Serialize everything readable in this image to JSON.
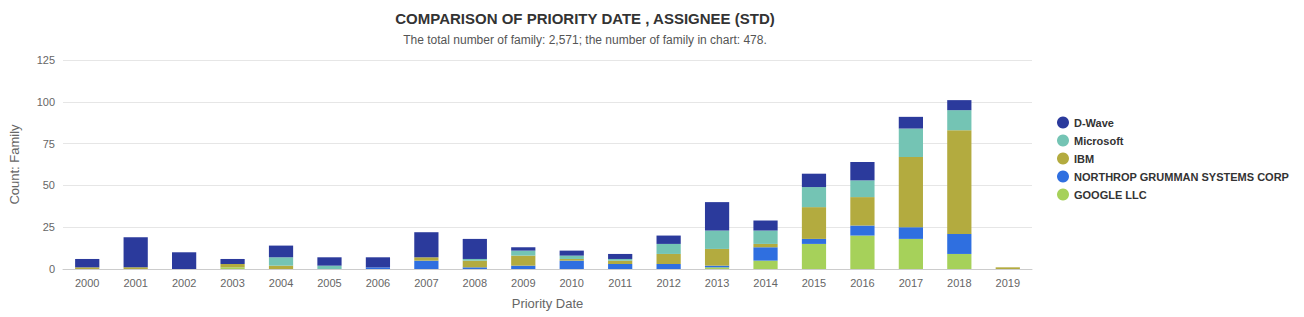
{
  "chart_data": {
    "type": "bar",
    "title": "COMPARISON OF PRIORITY DATE , ASSIGNEE (STD)",
    "subtitle": "The total number of family: 2,571; the number of family in chart: 478.",
    "x_label": "Priority Date",
    "y_label": "Count: Family",
    "categories": [
      "2000",
      "2001",
      "2002",
      "2003",
      "2004",
      "2005",
      "2006",
      "2007",
      "2008",
      "2009",
      "2010",
      "2011",
      "2012",
      "2013",
      "2014",
      "2015",
      "2016",
      "2017",
      "2018",
      "2019"
    ],
    "stacked": true,
    "legend": "right",
    "grid": true,
    "ylim": [
      0,
      125
    ],
    "yticks": [
      0,
      25,
      50,
      75,
      100,
      125
    ],
    "series": [
      {
        "name": "D-Wave",
        "color": "#2b3a9c",
        "values": [
          5,
          18,
          10,
          3,
          7,
          5,
          6,
          15,
          12,
          2,
          3,
          3,
          5,
          17,
          6,
          8,
          11,
          7,
          6,
          0
        ]
      },
      {
        "name": "Microsoft",
        "color": "#74c4b4",
        "values": [
          0,
          0,
          0,
          0,
          5,
          2,
          0,
          0,
          1,
          3,
          2,
          1,
          6,
          11,
          8,
          12,
          10,
          17,
          12,
          0
        ]
      },
      {
        "name": "IBM",
        "color": "#b3ab3f",
        "values": [
          1,
          1,
          0,
          2,
          2,
          0,
          0,
          2,
          4,
          6,
          1,
          2,
          6,
          10,
          2,
          19,
          17,
          42,
          62,
          1
        ]
      },
      {
        "name": "NORTHROP GRUMMAN SYSTEMS CORP",
        "color": "#2f6fe0",
        "values": [
          0,
          0,
          0,
          0,
          0,
          0,
          1,
          5,
          1,
          2,
          5,
          3,
          3,
          1,
          8,
          3,
          6,
          7,
          12,
          0
        ]
      },
      {
        "name": "GOOGLE LLC",
        "color": "#a6d15a",
        "values": [
          0,
          0,
          0,
          1,
          0,
          0,
          0,
          0,
          0,
          0,
          0,
          0,
          0,
          1,
          5,
          15,
          20,
          18,
          9,
          0
        ]
      }
    ]
  }
}
